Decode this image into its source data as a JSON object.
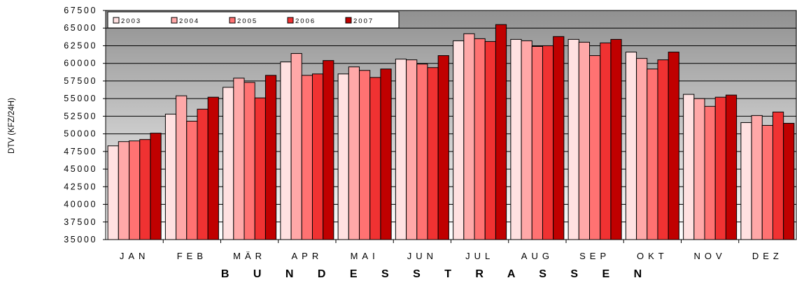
{
  "chart_data": {
    "type": "bar",
    "title": "",
    "xlabel": "B U N D E S S T R A S S E N",
    "ylabel": "DTV (KFZ/24H)",
    "ylim": [
      35000,
      67500
    ],
    "ytick_step": 2500,
    "ytick_labels": [
      "35000",
      "37500",
      "40000",
      "42500",
      "45000",
      "47500",
      "50000",
      "52500",
      "55000",
      "57500",
      "60000",
      "62500",
      "65000",
      "67500"
    ],
    "categories": [
      "JAN",
      "FEB",
      "MÄR",
      "APR",
      "MAI",
      "JUN",
      "JUL",
      "AUG",
      "SEP",
      "OKT",
      "NOV",
      "DEZ"
    ],
    "series": [
      {
        "name": "2003",
        "color": "#FFE1E1",
        "values": [
          48300,
          52800,
          56600,
          60200,
          58500,
          60600,
          63200,
          63400,
          63400,
          61600,
          55600,
          51600
        ]
      },
      {
        "name": "2004",
        "color": "#FFA8A8",
        "values": [
          48900,
          55400,
          57900,
          61400,
          59500,
          60500,
          64200,
          63200,
          63000,
          60700,
          55000,
          52600
        ]
      },
      {
        "name": "2005",
        "color": "#FF7272",
        "values": [
          49000,
          51800,
          57300,
          58300,
          59000,
          59900,
          63500,
          62400,
          61100,
          59200,
          53900,
          51200
        ]
      },
      {
        "name": "2006",
        "color": "#F03232",
        "values": [
          49200,
          53500,
          55100,
          58500,
          58000,
          59400,
          63100,
          62500,
          62900,
          60500,
          55200,
          53100
        ]
      },
      {
        "name": "2007",
        "color": "#C00000",
        "values": [
          50100,
          55200,
          58300,
          60400,
          59200,
          61100,
          65500,
          63800,
          63400,
          61600,
          55500,
          51500
        ]
      }
    ],
    "grid": true,
    "legend": {
      "position": "top-left",
      "orientation": "horizontal"
    }
  }
}
